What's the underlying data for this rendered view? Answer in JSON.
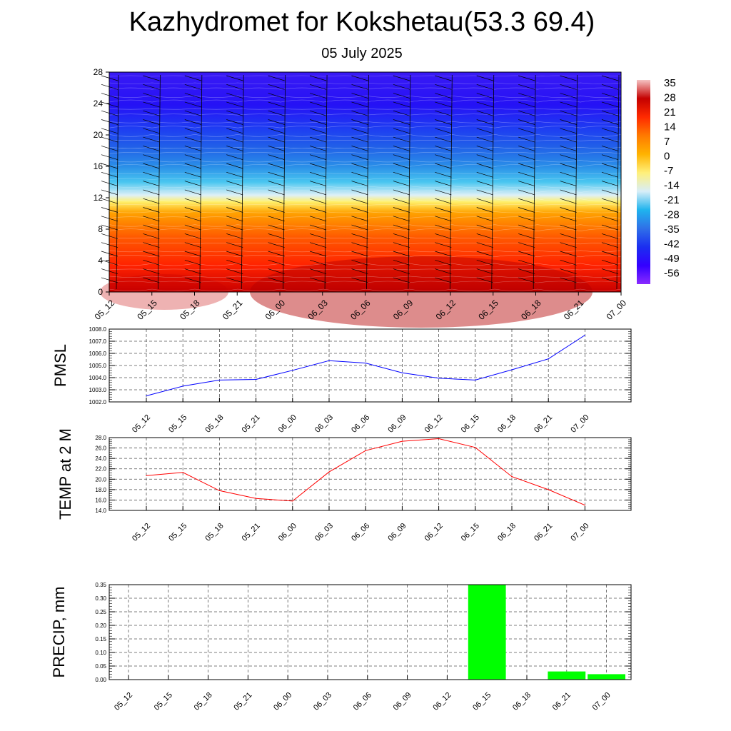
{
  "title": "Kazhydromet for Kokshetau(53.3 69.4)",
  "subtitle": "05 July 2025",
  "time_labels": [
    "05_12",
    "05_15",
    "05_18",
    "05_21",
    "06_00",
    "06_03",
    "06_06",
    "06_09",
    "06_12",
    "06_15",
    "06_18",
    "06_21",
    "07_00"
  ],
  "colors": {
    "pmsl_line": "#0000ff",
    "temp_line": "#ff0000",
    "precip_bar": "#00ff00"
  },
  "chart_data": [
    {
      "type": "heatmap",
      "name": "temperature-cross-section",
      "x": [
        "05_12",
        "05_15",
        "05_18",
        "05_21",
        "06_00",
        "06_03",
        "06_06",
        "06_09",
        "06_12",
        "06_15",
        "06_18",
        "06_21",
        "07_00"
      ],
      "yticks": [
        0,
        4,
        8,
        12,
        16,
        20,
        24,
        28
      ],
      "ylim": [
        0,
        28
      ],
      "colorbar_labels": [
        35,
        28,
        21,
        14,
        7,
        0,
        -7,
        -14,
        -21,
        -28,
        -35,
        -42,
        -49,
        -56
      ],
      "colormap_stops": [
        "#f5c2c2",
        "#c40000",
        "#ff2a00",
        "#ff7a00",
        "#ffb300",
        "#fff07a",
        "#d8eef8",
        "#1fb4ee",
        "#2f70e8",
        "#1b2ef0",
        "#3300ff",
        "#8a2bff"
      ]
    },
    {
      "type": "line",
      "ylabel": "PMSL",
      "categories": [
        "05_12",
        "05_15",
        "05_18",
        "05_21",
        "06_00",
        "06_03",
        "06_06",
        "06_09",
        "06_12",
        "06_15",
        "06_18",
        "06_21",
        "07_00"
      ],
      "values": [
        1002.5,
        1003.3,
        1003.8,
        1003.85,
        1004.6,
        1005.4,
        1005.2,
        1004.4,
        1003.95,
        1003.8,
        1004.65,
        1005.55,
        1007.5
      ],
      "ylim": [
        1002.0,
        1008.0
      ],
      "yticks": [
        "1002.0",
        "1003.0",
        "1004.0",
        "1005.0",
        "1006.0",
        "1007.0",
        "1008.0"
      ],
      "grid": true
    },
    {
      "type": "line",
      "ylabel": "TEMP at 2 M",
      "categories": [
        "05_12",
        "05_15",
        "05_18",
        "05_21",
        "06_00",
        "06_03",
        "06_06",
        "06_09",
        "06_12",
        "06_15",
        "06_18",
        "06_21",
        "07_00"
      ],
      "values": [
        20.7,
        21.3,
        17.8,
        16.3,
        15.8,
        21.4,
        25.5,
        27.3,
        27.8,
        26.1,
        20.5,
        18.0,
        15.0
      ],
      "ylim": [
        14.0,
        28.0
      ],
      "yticks": [
        "14.0",
        "16.0",
        "18.0",
        "20.0",
        "22.0",
        "24.0",
        "26.0",
        "28.0"
      ],
      "grid": true
    },
    {
      "type": "bar",
      "ylabel": "PRECIP, mm",
      "categories": [
        "05_12",
        "05_15",
        "05_18",
        "05_21",
        "06_00",
        "06_03",
        "06_06",
        "06_09",
        "06_12",
        "06_15",
        "06_18",
        "06_21",
        "07_00"
      ],
      "values": [
        0,
        0,
        0,
        0,
        0,
        0,
        0,
        0,
        0,
        0.35,
        0,
        0.03,
        0.02
      ],
      "ylim": [
        0,
        0.35
      ],
      "yticks": [
        "0.00",
        "0.05",
        "0.10",
        "0.15",
        "0.20",
        "0.25",
        "0.30",
        "0.35"
      ],
      "grid": true
    }
  ]
}
